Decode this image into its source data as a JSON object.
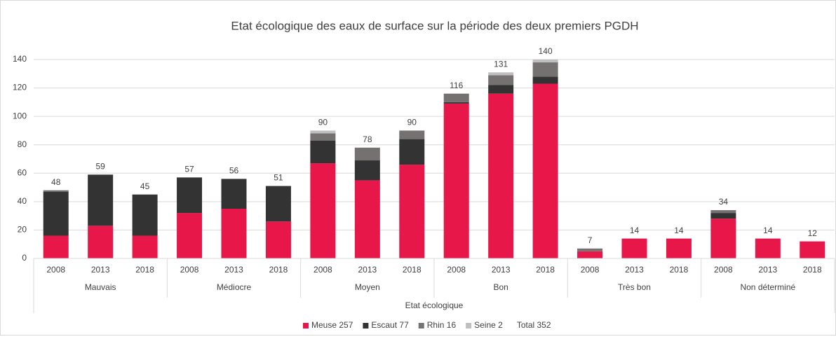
{
  "chart_data": {
    "type": "stacked_bar",
    "title": "Etat écologique des eaux de surface sur la période des deux premiers PGDH",
    "x_label": "Etat écologique",
    "categories": [
      "2008",
      "2013",
      "2018",
      "2008",
      "2013",
      "2018",
      "2008",
      "2013",
      "2018",
      "2008",
      "2013",
      "2018",
      "2008",
      "2013",
      "2018",
      "2008",
      "2013",
      "2018"
    ],
    "groups": [
      "Mauvais",
      "Médiocre",
      "Moyen",
      "Bon",
      "Très bon",
      "Non déterminé"
    ],
    "series": [
      {
        "name": "Meuse 257",
        "color": "#e8174a",
        "values": [
          16,
          23,
          16,
          32,
          35,
          26,
          67,
          55,
          66,
          109,
          116,
          123,
          5,
          14,
          14,
          28,
          14,
          12
        ]
      },
      {
        "name": "Escaut 77",
        "color": "#333333",
        "values": [
          31,
          36,
          29,
          25,
          21,
          25,
          16,
          14,
          18,
          1,
          6,
          5,
          0,
          0,
          0,
          4,
          0,
          0
        ]
      },
      {
        "name": "Rhin 16",
        "color": "#767171",
        "values": [
          1,
          0,
          0,
          0,
          0,
          0,
          5,
          9,
          6,
          6,
          7,
          10,
          2,
          0,
          0,
          2,
          0,
          0
        ]
      },
      {
        "name": "Seine 2",
        "color": "#bfbfbf",
        "values": [
          0,
          0,
          0,
          0,
          0,
          0,
          2,
          0,
          0,
          0,
          2,
          2,
          0,
          0,
          0,
          0,
          0,
          0
        ]
      }
    ],
    "totals": [
      48,
      59,
      45,
      57,
      56,
      51,
      90,
      78,
      90,
      116,
      131,
      140,
      7,
      14,
      14,
      34,
      14,
      12
    ],
    "legend_total": "Total 352",
    "ylim": [
      0,
      140
    ],
    "yticks": [
      0,
      20,
      40,
      60,
      80,
      100,
      120,
      140
    ],
    "grid": true
  }
}
